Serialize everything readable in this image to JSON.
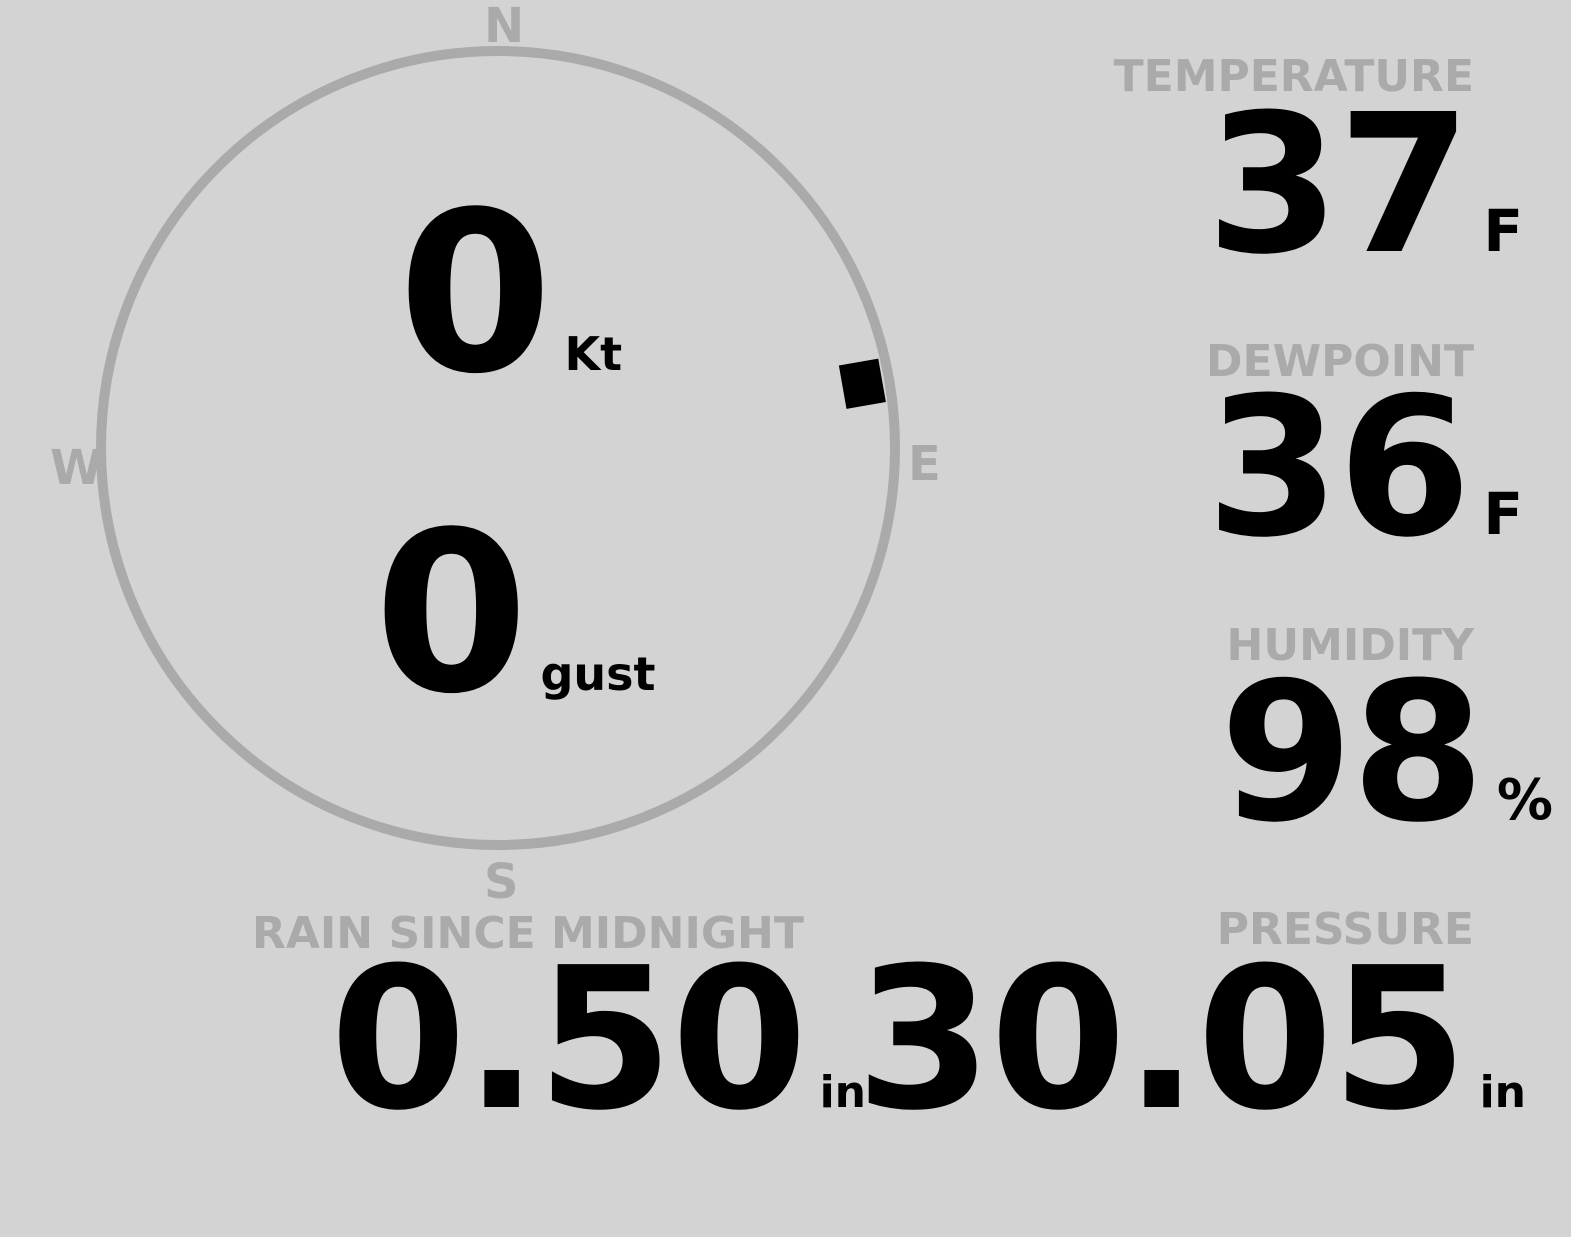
{
  "compass": {
    "north": "N",
    "south": "S",
    "east": "E",
    "west": "W",
    "wind_direction_deg": 80,
    "ring_color": "#aaaaaa"
  },
  "wind": {
    "speed": "0",
    "speed_unit": "Kt",
    "gust": "0",
    "gust_unit": "gust"
  },
  "temperature": {
    "label": "TEMPERATURE",
    "value": "37",
    "unit": "F"
  },
  "dewpoint": {
    "label": "DEWPOINT",
    "value": "36",
    "unit": "F"
  },
  "humidity": {
    "label": "HUMIDITY",
    "value": "98",
    "unit": "%"
  },
  "rain": {
    "label": "RAIN SINCE MIDNIGHT",
    "value": "0.50",
    "unit": "in"
  },
  "pressure": {
    "label": "PRESSURE",
    "value": "30.05",
    "unit": "in"
  },
  "colors": {
    "background": "#d3d3d3",
    "label": "#aaaaaa",
    "value": "#000000"
  }
}
